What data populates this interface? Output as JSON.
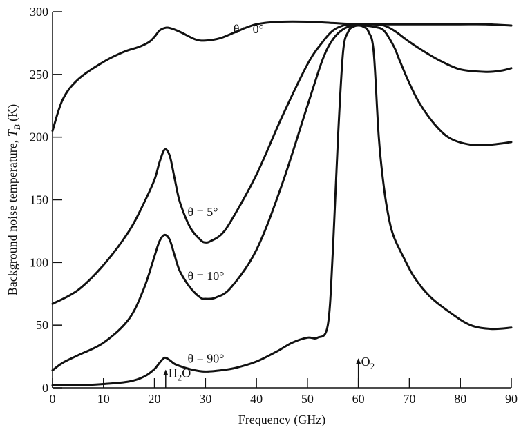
{
  "chart_data": {
    "type": "line",
    "title": "",
    "xlabel": "Frequency (GHz)",
    "ylabel_parts": [
      "Background noise temperature, ",
      "T",
      "B",
      " (K)"
    ],
    "xlim": [
      0,
      90
    ],
    "ylim": [
      0,
      300
    ],
    "xticks": [
      0,
      10,
      20,
      30,
      40,
      50,
      60,
      70,
      80,
      90
    ],
    "yticks": [
      0,
      50,
      100,
      150,
      200,
      250,
      300
    ],
    "grid": false,
    "series": [
      {
        "name": "θ = 0°",
        "label_x": 35.5,
        "label_y": 283,
        "x": [
          0,
          2,
          5,
          10,
          14,
          17,
          19,
          20,
          21,
          22,
          23,
          25,
          28,
          30,
          33,
          36,
          40,
          45,
          50,
          55,
          60,
          65,
          70,
          75,
          80,
          85,
          90
        ],
        "y": [
          205,
          230,
          246,
          260,
          268,
          272,
          276,
          280,
          285,
          287,
          287,
          284,
          278,
          277,
          279,
          284,
          290,
          292,
          292,
          291,
          290,
          290,
          290,
          290,
          290,
          290,
          289
        ]
      },
      {
        "name": "θ = 5°",
        "label_x": 26.5,
        "label_y": 137,
        "x": [
          0,
          5,
          10,
          15,
          18,
          20,
          21,
          22,
          23,
          24,
          25,
          27,
          29,
          30,
          31,
          33,
          35,
          40,
          45,
          50,
          53,
          55,
          57,
          59,
          61,
          63,
          65,
          67,
          70,
          73,
          76,
          80,
          85,
          88,
          90
        ],
        "y": [
          67,
          78,
          98,
          125,
          148,
          166,
          180,
          190,
          185,
          166,
          148,
          128,
          118,
          116,
          117,
          122,
          133,
          170,
          216,
          258,
          276,
          285,
          289,
          290,
          290,
          290,
          289,
          285,
          276,
          268,
          261,
          254,
          252,
          253,
          255
        ]
      },
      {
        "name": "θ = 10°",
        "label_x": 26.5,
        "label_y": 86,
        "x": [
          0,
          2,
          5,
          10,
          15,
          18,
          20,
          21,
          22,
          23,
          24,
          25,
          27,
          29,
          30,
          32,
          35,
          40,
          45,
          50,
          53,
          55,
          57,
          59,
          61,
          63,
          65,
          67,
          68,
          70,
          72,
          75,
          78,
          82,
          86,
          90
        ],
        "y": [
          14,
          20,
          26,
          36,
          55,
          80,
          105,
          117,
          122,
          118,
          105,
          93,
          80,
          72,
          71,
          72,
          80,
          110,
          162,
          225,
          262,
          278,
          286,
          289,
          289,
          288,
          285,
          272,
          262,
          243,
          227,
          210,
          199,
          194,
          194,
          196
        ]
      },
      {
        "name": "θ = 90°",
        "label_x": 26.5,
        "label_y": 20,
        "x": [
          0,
          5,
          10,
          15,
          18,
          20,
          21,
          22,
          23,
          24,
          26,
          28,
          30,
          33,
          36,
          40,
          44,
          47,
          50,
          52,
          54,
          55,
          56,
          57,
          58,
          59,
          60,
          61,
          62,
          63,
          64,
          65,
          66,
          67,
          69,
          71,
          74,
          78,
          82,
          86,
          90
        ],
        "y": [
          2,
          2,
          3,
          5,
          9,
          15,
          20,
          24,
          22,
          19,
          16,
          14,
          13,
          14,
          16,
          21,
          29,
          36,
          40,
          40,
          50,
          110,
          200,
          268,
          284,
          288,
          289,
          288,
          284,
          268,
          200,
          160,
          135,
          120,
          103,
          88,
          73,
          60,
          50,
          47,
          48
        ]
      }
    ],
    "annotations": [
      {
        "name": "H2O",
        "text_main": "H",
        "text_sub": "2",
        "text_tail": "O",
        "x": 22.2,
        "y_top": 14
      },
      {
        "name": "O2",
        "text_main": "O",
        "text_sub": "2",
        "text_tail": "",
        "x": 60,
        "y_top": 23
      }
    ]
  }
}
